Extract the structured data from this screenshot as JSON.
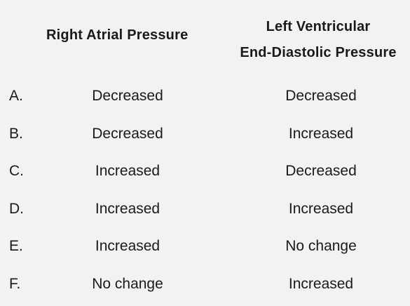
{
  "headers": {
    "right_atrial": "Right Atrial Pressure",
    "lv_line1": "Left Ventricular",
    "lv_line2": "End-Diastolic Pressure"
  },
  "rows": [
    {
      "letter": "A.",
      "right_atrial": "Decreased",
      "lv_edp": "Decreased"
    },
    {
      "letter": "B.",
      "right_atrial": "Decreased",
      "lv_edp": "Increased"
    },
    {
      "letter": "C.",
      "right_atrial": "Increased",
      "lv_edp": "Decreased"
    },
    {
      "letter": "D.",
      "right_atrial": "Increased",
      "lv_edp": "Increased"
    },
    {
      "letter": "E.",
      "right_atrial": "Increased",
      "lv_edp": "No change"
    },
    {
      "letter": "F.",
      "right_atrial": "No change",
      "lv_edp": "Increased"
    }
  ]
}
